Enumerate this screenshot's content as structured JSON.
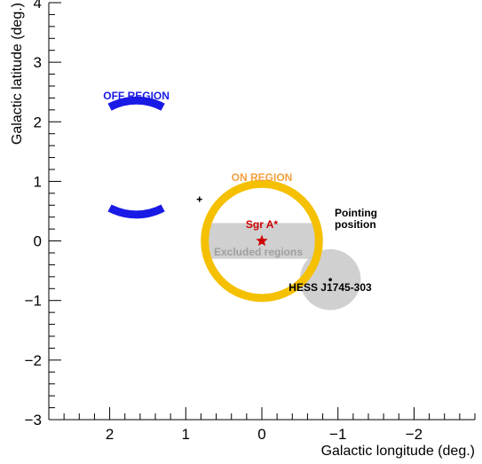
{
  "chart_data": {
    "type": "scatter",
    "title": "",
    "xlabel": "Galactic longitude (deg.)",
    "ylabel": "Galactic latitude (deg.)",
    "xlim": [
      2.8,
      -2.8
    ],
    "ylim": [
      -3,
      4
    ],
    "x_ticks": [
      2,
      1,
      0,
      -1,
      -2
    ],
    "x_tick_labels": [
      "2",
      "1",
      "0",
      "−1",
      "−2"
    ],
    "y_ticks": [
      -3,
      -2,
      -1,
      0,
      1,
      2,
      3,
      4
    ],
    "y_tick_labels": [
      "−3",
      "−2",
      "−1",
      "0",
      "1",
      "2",
      "3",
      "4"
    ],
    "grid": false,
    "off_region": {
      "label": "OFF REGION",
      "color": "#1a1ae6",
      "center": [
        1.65,
        1.4
      ],
      "radius": 0.75,
      "gap_half_width": 0.35
    },
    "on_region": {
      "label": "ON REGION",
      "color": "#f5c000",
      "center": [
        0,
        0
      ],
      "radius": 0.75
    },
    "excluded_regions": {
      "label": "Excluded regions",
      "color": "#c8c8c8",
      "rectangle": {
        "x": [
          0.7,
          -0.7
        ],
        "y": [
          -0.3,
          0.3
        ]
      },
      "circle": {
        "center": [
          -0.9,
          -0.65
        ],
        "radius": 0.4
      }
    },
    "sources": [
      {
        "name": "Sgr A*",
        "x": 0,
        "y": 0,
        "marker": "star",
        "color": "#cc0000"
      },
      {
        "name": "HESS J1745-303",
        "x": -0.9,
        "y": -0.65,
        "marker": "dot",
        "color": "#000000"
      }
    ],
    "pointing": {
      "label": "Pointing position",
      "x": 0.82,
      "y": 0.7,
      "marker": "cross",
      "color": "#000000"
    }
  }
}
